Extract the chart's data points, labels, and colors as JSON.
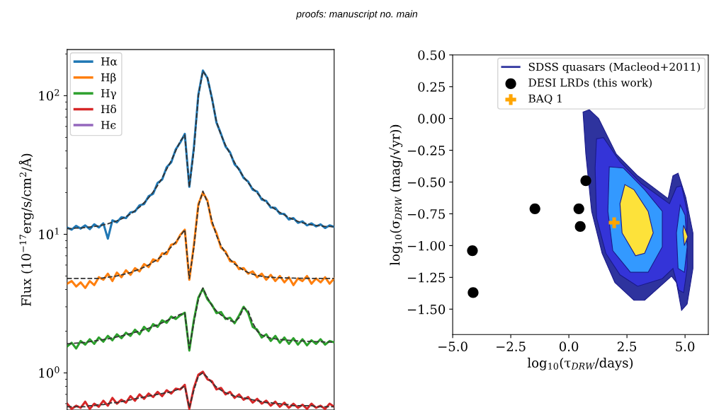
{
  "chart_data": [
    {
      "type": "line",
      "ylabel": "Flux (10$^{−17}$erg/s/cm$^{2}$/Å)",
      "log": "y",
      "ylim": [
        0.54,
        215
      ],
      "yticks": [
        {
          "value": 1,
          "label": "10$^{0}$"
        },
        {
          "value": 10,
          "label": "10$^{1}$"
        },
        {
          "value": 100,
          "label": "10$^{2}$"
        }
      ],
      "legend": "top left",
      "tick_labels": "y",
      "grid": false,
      "annotations": [
        "proofs: manuscript no. main"
      ],
      "categories": [
        null,
        null,
        null,
        null,
        null,
        null,
        null,
        null,
        null,
        null,
        null,
        null,
        null,
        null,
        null,
        null,
        null,
        null,
        null,
        null,
        null,
        null,
        null,
        null,
        null,
        null,
        null,
        null,
        null,
        null,
        null,
        null,
        null,
        null,
        null,
        null,
        null,
        null,
        null,
        null,
        null,
        null,
        null,
        null,
        null,
        null,
        null,
        null,
        null,
        null,
        null,
        null,
        null,
        null,
        null,
        null,
        null,
        null,
        null,
        null
      ],
      "series": [
        {
          "name": "Hα",
          "color": "#1f77b4",
          "values": [
            11.2,
            10.8,
            11.5,
            11.0,
            11.6,
            10.9,
            11.8,
            11.2,
            12.0,
            9.3,
            12.6,
            12.2,
            13.3,
            13.1,
            14.4,
            14.6,
            16.2,
            16.5,
            18.8,
            19.6,
            23.5,
            24.8,
            30.5,
            33,
            41,
            46,
            53,
            22,
            42,
            102,
            152,
            134,
            96,
            64,
            53,
            43,
            39,
            32,
            29.5,
            25.5,
            24,
            21,
            20.3,
            17.8,
            17.4,
            15.6,
            15.5,
            14.1,
            14.0,
            12.8,
            13.1,
            12.1,
            12.4,
            11.6,
            12.0,
            11.4,
            11.8,
            11.1,
            11.6,
            11.3
          ]
        },
        {
          "name": "Hβ",
          "color": "#ff7f0e",
          "values": [
            4.4,
            4.6,
            4.2,
            4.5,
            4.1,
            4.6,
            4.3,
            4.9,
            4.7,
            5.2,
            4.6,
            5.3,
            4.9,
            5.5,
            5.1,
            5.7,
            5.4,
            6.1,
            5.8,
            6.6,
            6.4,
            7.3,
            7.2,
            8.4,
            8.6,
            9.9,
            10.8,
            4.7,
            8.3,
            16.5,
            20,
            17.5,
            12,
            10.2,
            8.0,
            7.5,
            6.4,
            6.3,
            5.6,
            5.7,
            5.2,
            5.4,
            4.9,
            5.2,
            4.7,
            5.1,
            4.6,
            5.0,
            4.5,
            4.9,
            4.3,
            4.8,
            4.6,
            5.0,
            4.4,
            4.8,
            4.5,
            4.9,
            4.4,
            4.8
          ]
        },
        {
          "name": "Hγ",
          "color": "#2ca02c",
          "values": [
            1.55,
            1.65,
            1.5,
            1.7,
            1.6,
            1.75,
            1.62,
            1.8,
            1.68,
            1.85,
            1.72,
            1.9,
            1.78,
            1.95,
            1.85,
            2.05,
            1.9,
            2.15,
            2.0,
            2.25,
            2.15,
            2.4,
            2.3,
            2.55,
            2.45,
            2.6,
            2.72,
            1.45,
            2.4,
            3.5,
            4.05,
            3.4,
            3.1,
            2.7,
            2.75,
            2.45,
            2.5,
            2.28,
            2.6,
            3.0,
            2.7,
            2.15,
            2.05,
            1.8,
            1.9,
            1.7,
            1.85,
            1.65,
            1.8,
            1.62,
            1.78,
            1.6,
            1.75,
            1.58,
            1.72,
            1.62,
            1.75,
            1.6,
            1.7,
            1.66
          ]
        },
        {
          "name": "Hδ",
          "color": "#d62728",
          "values": [
            0.6,
            0.55,
            0.58,
            0.56,
            0.62,
            0.55,
            0.6,
            0.57,
            0.63,
            0.58,
            0.66,
            0.6,
            0.64,
            0.61,
            0.68,
            0.63,
            0.7,
            0.65,
            0.71,
            0.67,
            0.73,
            0.68,
            0.75,
            0.71,
            0.77,
            0.76,
            0.82,
            0.55,
            0.78,
            0.97,
            1.02,
            0.9,
            0.87,
            0.76,
            0.78,
            0.7,
            0.73,
            0.66,
            0.7,
            0.64,
            0.67,
            0.61,
            0.65,
            0.6,
            0.63,
            0.58,
            0.62,
            0.57,
            0.61,
            0.56,
            0.6,
            0.56,
            0.59,
            0.55,
            0.6,
            0.56,
            0.58,
            0.55,
            0.6,
            0.57
          ]
        },
        {
          "name": "Hϵ",
          "color": "#9467bd",
          "values": [
            null,
            null,
            null,
            null,
            null,
            null,
            null,
            null,
            null,
            null,
            null,
            null,
            null,
            null,
            null,
            null,
            null,
            null,
            null,
            null,
            null,
            null,
            null,
            null,
            null,
            null,
            null,
            null,
            null,
            null,
            null,
            null,
            null,
            null,
            null,
            null,
            null,
            null,
            null,
            null,
            null,
            null,
            null,
            null,
            null,
            null,
            null,
            null,
            null,
            null,
            null,
            null,
            null,
            null,
            null,
            null,
            null,
            null,
            null,
            null
          ]
        },
        {
          "color": "#333333",
          "line_style": "dashed",
          "values": [
            11.0,
            11.0,
            11.1,
            11.1,
            11.2,
            11.3,
            11.4,
            11.5,
            11.7,
            11.9,
            12.2,
            12.5,
            12.9,
            13.4,
            14.0,
            14.8,
            15.7,
            16.9,
            18.3,
            20.2,
            22.5,
            25.5,
            29.5,
            34,
            40,
            47,
            52,
            22,
            40,
            100,
            150,
            135,
            95,
            65,
            52,
            44,
            38,
            33,
            29,
            26,
            23.5,
            21.5,
            19.8,
            18.3,
            17.0,
            16.0,
            15.1,
            14.4,
            13.8,
            13.2,
            12.8,
            12.4,
            12.1,
            11.9,
            11.7,
            11.6,
            11.5,
            11.4,
            11.4,
            11.3
          ]
        },
        {
          "color": "#333333",
          "line_style": "dashed",
          "values": [
            4.8,
            4.8,
            4.8,
            4.8,
            4.8,
            4.8,
            4.8,
            4.8,
            4.85,
            4.9,
            4.95,
            5.0,
            5.1,
            5.2,
            5.3,
            5.45,
            5.6,
            5.8,
            6.0,
            6.3,
            6.6,
            7.0,
            7.5,
            8.1,
            8.8,
            9.7,
            10.8,
            4.8,
            8,
            16,
            20.5,
            17,
            12.5,
            9.8,
            8.3,
            7.3,
            6.6,
            6.1,
            5.8,
            5.5,
            5.3,
            5.15,
            5.05,
            4.98,
            4.93,
            4.9,
            4.88,
            4.86,
            4.85,
            4.84,
            4.83,
            4.82,
            4.82,
            4.81,
            4.81,
            4.8,
            4.8,
            4.8,
            4.8,
            4.8
          ]
        },
        {
          "color": "#333333",
          "line_style": "dashed",
          "values": [
            1.62,
            1.63,
            1.64,
            1.65,
            1.66,
            1.68,
            1.7,
            1.72,
            1.74,
            1.76,
            1.79,
            1.82,
            1.85,
            1.88,
            1.92,
            1.96,
            2.0,
            2.05,
            2.1,
            2.16,
            2.22,
            2.3,
            2.38,
            2.46,
            2.55,
            2.65,
            2.7,
            1.5,
            2.3,
            3.4,
            4.1,
            3.5,
            3.05,
            2.8,
            2.62,
            2.5,
            2.38,
            2.33,
            2.5,
            2.95,
            2.8,
            2.3,
            2.0,
            1.88,
            1.82,
            1.78,
            1.76,
            1.74,
            1.73,
            1.72,
            1.71,
            1.7,
            1.7,
            1.69,
            1.69,
            1.68,
            1.68,
            1.67,
            1.67,
            1.66
          ]
        },
        {
          "color": "#333333",
          "line_style": "dashed",
          "values": [
            0.57,
            0.57,
            0.57,
            0.57,
            0.57,
            0.58,
            0.58,
            0.59,
            0.59,
            0.6,
            0.61,
            0.61,
            0.62,
            0.63,
            0.64,
            0.65,
            0.66,
            0.67,
            0.68,
            0.69,
            0.7,
            0.71,
            0.72,
            0.73,
            0.75,
            0.77,
            0.8,
            0.56,
            0.75,
            0.95,
            1.0,
            0.93,
            0.85,
            0.79,
            0.75,
            0.72,
            0.7,
            0.68,
            0.67,
            0.66,
            0.65,
            0.64,
            0.63,
            0.62,
            0.61,
            0.61,
            0.6,
            0.6,
            0.59,
            0.59,
            0.58,
            0.58,
            0.58,
            0.58,
            0.58,
            0.57,
            0.57,
            0.57,
            0.57,
            0.57
          ]
        }
      ]
    },
    {
      "type": "scatter",
      "xlabel": "log$_{10}$(τ$_{DRW}$/days)",
      "ylabel": "log$_{10}$(σ$_{DRW}$ (mag/√yr))",
      "xlim": [
        -5,
        6
      ],
      "ylim": [
        -1.7,
        0.5
      ],
      "xticks": [
        {
          "value": -5,
          "label": "−5.0"
        },
        {
          "value": -2.5,
          "label": "−2.5"
        },
        {
          "value": 0,
          "label": "0.0"
        },
        {
          "value": 2.5,
          "label": "2.5"
        },
        {
          "value": 5,
          "label": "5.0"
        }
      ],
      "yticks": [
        {
          "value": 0.5,
          "label": "0.50"
        },
        {
          "value": 0.25,
          "label": "0.25"
        },
        {
          "value": 0,
          "label": "0.00"
        },
        {
          "value": -0.25,
          "label": "−0.25"
        },
        {
          "value": -0.5,
          "label": "−0.50"
        },
        {
          "value": -0.75,
          "label": "−0.75"
        },
        {
          "value": -1.0,
          "label": "−1.00"
        },
        {
          "value": -1.25,
          "label": "−1.25"
        },
        {
          "value": -1.5,
          "label": "−1.50"
        }
      ],
      "legend": "top right",
      "grid": false,
      "series": [
        {
          "type": "area",
          "name": "SDSS quasars (Macleod+2011)",
          "color": "#2e339e",
          "x": [
            0.61,
            0.88,
            1.28,
            2.04,
            2.96,
            4.27,
            4.48,
            4.7,
            5.03,
            5.34,
            5.34,
            5.09,
            4.85,
            4.63,
            4.42,
            3.26,
            2.8,
            1.98,
            1.43,
            0.98,
            0.73
          ],
          "values": [
            0.05,
            0.07,
            0.0,
            -0.28,
            -0.45,
            -0.63,
            -0.45,
            -0.43,
            -0.62,
            -0.9,
            -1.18,
            -1.46,
            -1.51,
            -1.29,
            -1.24,
            -1.43,
            -1.43,
            -1.29,
            -1.06,
            -0.73,
            -0.28
          ]
        },
        {
          "type": "area",
          "color": "#3434d8",
          "x": [
            1.19,
            1.49,
            2.2,
            3.11,
            4.33,
            4.63,
            4.85,
            5.09,
            5.09,
            4.94,
            4.72,
            4.48,
            4.02,
            2.96,
            2.2,
            1.59,
            1.19,
            1.13
          ],
          "values": [
            -0.16,
            -0.15,
            -0.34,
            -0.51,
            -0.67,
            -0.54,
            -0.53,
            -0.73,
            -1.18,
            -1.37,
            -1.35,
            -1.18,
            -1.26,
            -1.32,
            -1.23,
            -1.06,
            -0.78,
            -0.39
          ]
        },
        {
          "type": "area",
          "color": "#3399ff",
          "x": [
            1.74,
            2.35,
            3.26,
            4.02,
            4.02,
            3.41,
            2.65,
            1.89,
            1.68
          ],
          "values": [
            -0.38,
            -0.39,
            -0.56,
            -0.73,
            -1.01,
            -1.21,
            -1.21,
            -1.04,
            -0.73
          ]
        },
        {
          "type": "area",
          "color": "#3399ff",
          "x": [
            4.79,
            5.0,
            5.09,
            4.97,
            4.7,
            4.63
          ],
          "values": [
            -0.68,
            -0.76,
            -1.01,
            -1.21,
            -1.18,
            -0.9
          ]
        },
        {
          "type": "area",
          "color": "#fde23a",
          "x": [
            2.41,
            2.8,
            3.41,
            3.63,
            3.26,
            2.87,
            2.29,
            2.2
          ],
          "values": [
            -0.52,
            -0.56,
            -0.73,
            -0.9,
            -1.06,
            -1.08,
            -0.9,
            -0.67
          ]
        },
        {
          "type": "area",
          "color": "#fde23a",
          "x": [
            4.94,
            5.12,
            4.97,
            4.91
          ],
          "values": [
            -0.84,
            -0.93,
            -1.0,
            -0.89
          ]
        },
        {
          "type": "scatter",
          "name": "DESI LRDs (this work)",
          "color": "#000000",
          "marker": "circle",
          "x": [
            -4.15,
            -4.12,
            -1.46,
            0.43,
            0.49,
            0.73
          ],
          "values": [
            -1.04,
            -1.37,
            -0.71,
            -0.71,
            -0.85,
            -0.49
          ]
        },
        {
          "type": "scatter",
          "name": "BAQ 1",
          "color": "#ffa500",
          "marker": "cross",
          "x": [
            1.95
          ],
          "values": [
            -0.82
          ]
        }
      ]
    }
  ]
}
